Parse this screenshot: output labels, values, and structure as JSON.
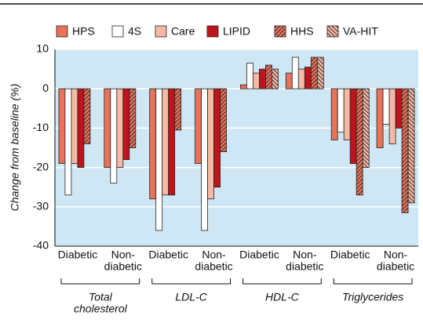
{
  "chart_data": {
    "type": "bar",
    "y_label": "Change from baseline (%)",
    "categories": [
      [
        "Diabetic"
      ],
      [
        "Non-",
        "diabetic"
      ],
      [
        "Diabetic"
      ],
      [
        "Non-",
        "diabetic"
      ],
      [
        "Diabetic"
      ],
      [
        "Non-",
        "diabetic"
      ],
      [
        "Diabetic"
      ],
      [
        "Non-",
        "diabetic"
      ]
    ],
    "groups": [
      [
        "Total",
        "cholesterol"
      ],
      [
        "LDL-C"
      ],
      [
        "HDL-C"
      ],
      [
        "Triglycerides"
      ]
    ],
    "series": [
      {
        "name": "HPS",
        "color": "#e8735a",
        "values": [
          -19,
          -20,
          -28,
          -19,
          1,
          4,
          -13,
          -15
        ]
      },
      {
        "name": "4S",
        "color": "#ffffff",
        "values": [
          -27,
          -24,
          -36,
          -36,
          6.5,
          8,
          -11,
          -9
        ]
      },
      {
        "name": "Care",
        "color": "#f5b9a5",
        "values": [
          -19,
          -20,
          -27,
          -28,
          4,
          5,
          -13,
          -14
        ]
      },
      {
        "name": "LIPID",
        "color": "#c0141c",
        "values": [
          -20,
          -18,
          -27,
          -25,
          5,
          5.5,
          -19,
          -10
        ]
      },
      {
        "name": "HHS",
        "color": "#e8735a",
        "hatch": "forward",
        "values": [
          -14,
          -15,
          -10.5,
          -16,
          6,
          8,
          -27,
          -31.5
        ]
      },
      {
        "name": "VA-HIT",
        "color": "#f5b9a5",
        "hatch": "back",
        "values": [
          null,
          null,
          null,
          null,
          5,
          8,
          -20,
          -29
        ]
      }
    ],
    "ylim": [
      -40,
      10
    ],
    "yticks": [
      10,
      0,
      -10,
      -20,
      -30,
      -40
    ],
    "grid": true,
    "background": "#cfe7f4"
  }
}
